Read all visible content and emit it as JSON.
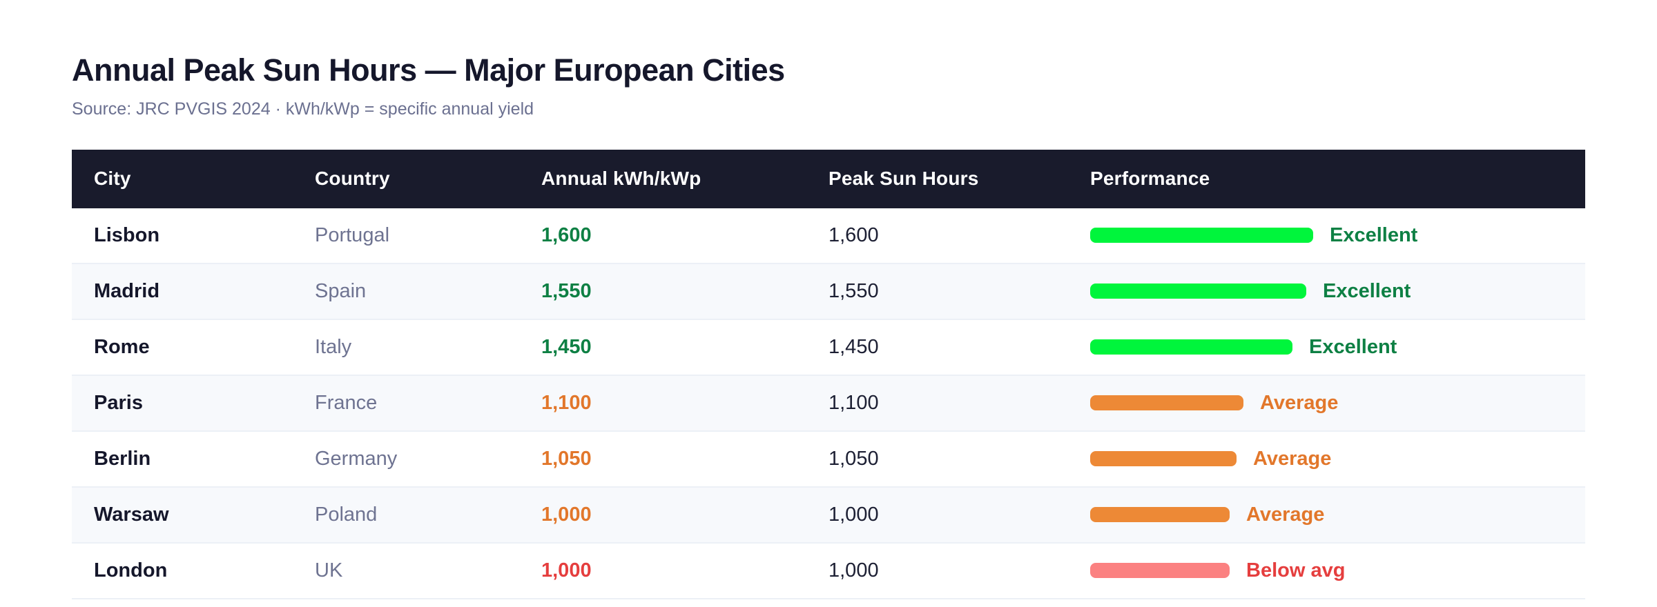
{
  "page": {
    "title": "Annual Peak Sun Hours — Major European Cities",
    "subtitle": "Source: JRC PVGIS 2024 · kWh/kWp = specific annual yield"
  },
  "table": {
    "columns": [
      "City",
      "Country",
      "Annual kWh/kWp",
      "Peak Sun Hours",
      "Performance"
    ],
    "rows": [
      {
        "city": "Lisbon",
        "country": "Portugal",
        "kwh": "1,600",
        "sun_hours": "1,600",
        "rating": "Excellent",
        "tier": "excellent",
        "value": 1600
      },
      {
        "city": "Madrid",
        "country": "Spain",
        "kwh": "1,550",
        "sun_hours": "1,550",
        "rating": "Excellent",
        "tier": "excellent",
        "value": 1550
      },
      {
        "city": "Rome",
        "country": "Italy",
        "kwh": "1,450",
        "sun_hours": "1,450",
        "rating": "Excellent",
        "tier": "excellent",
        "value": 1450
      },
      {
        "city": "Paris",
        "country": "France",
        "kwh": "1,100",
        "sun_hours": "1,100",
        "rating": "Average",
        "tier": "average",
        "value": 1100
      },
      {
        "city": "Berlin",
        "country": "Germany",
        "kwh": "1,050",
        "sun_hours": "1,050",
        "rating": "Average",
        "tier": "average",
        "value": 1050
      },
      {
        "city": "Warsaw",
        "country": "Poland",
        "kwh": "1,000",
        "sun_hours": "1,000",
        "rating": "Average",
        "tier": "average",
        "value": 1000
      },
      {
        "city": "London",
        "country": "UK",
        "kwh": "1,000",
        "sun_hours": "1,000",
        "rating": "Below avg",
        "tier": "below",
        "value": 1000
      }
    ]
  },
  "colors": {
    "header_bg": "#191b2c",
    "title": "#15172b",
    "subtitle": "#6b7090",
    "country_text": "#6e7391",
    "alt_row_bg": "#f7f9fc",
    "row_border": "#ecf0f6",
    "tiers": {
      "excellent": {
        "bar": "#00f53c",
        "text": "#0e8044"
      },
      "average": {
        "bar": "#ed8936",
        "text": "#e2772b"
      },
      "below": {
        "bar": "#fb8181",
        "text": "#e53e3e"
      }
    }
  },
  "chart_data": {
    "type": "table",
    "title": "Annual Peak Sun Hours — Major European Cities",
    "subtitle": "Source: JRC PVGIS 2024 · kWh/kWp = specific annual yield",
    "columns": [
      "City",
      "Country",
      "Annual kWh/kWp",
      "Peak Sun Hours",
      "Performance"
    ],
    "rows": [
      [
        "Lisbon",
        "Portugal",
        1600,
        1600,
        "Excellent"
      ],
      [
        "Madrid",
        "Spain",
        1550,
        1550,
        "Excellent"
      ],
      [
        "Rome",
        "Italy",
        1450,
        1450,
        "Excellent"
      ],
      [
        "Paris",
        "France",
        1100,
        1100,
        "Average"
      ],
      [
        "Berlin",
        "Germany",
        1050,
        1050,
        "Average"
      ],
      [
        "Warsaw",
        "Poland",
        1000,
        1000,
        "Average"
      ],
      [
        "London",
        "UK",
        1000,
        1000,
        "Below avg"
      ]
    ],
    "performance_bars": {
      "values": [
        1600,
        1550,
        1450,
        1100,
        1050,
        1000,
        1000
      ],
      "tiers": [
        "excellent",
        "excellent",
        "excellent",
        "average",
        "average",
        "average",
        "below"
      ]
    },
    "max_value": 1600,
    "zebra_striping": true,
    "legend_position": "none",
    "grid": false
  }
}
